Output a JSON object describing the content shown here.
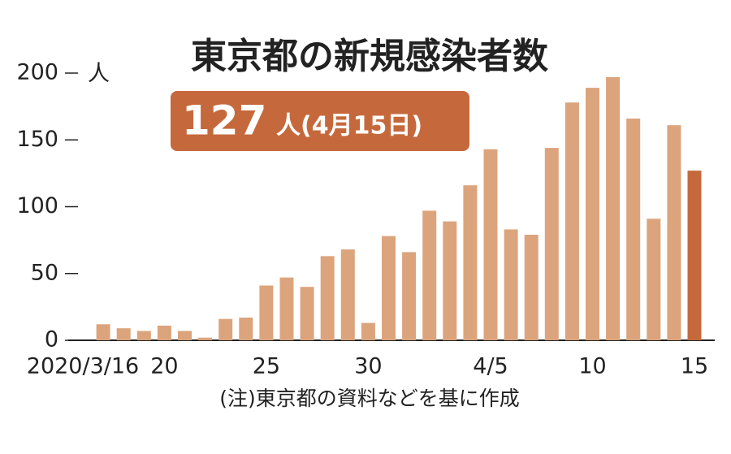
{
  "chart_data": {
    "type": "bar",
    "title": "東京都の新規感染者数",
    "annotation": {
      "number": "127",
      "text": "人(4月15日)"
    },
    "y_unit": "人",
    "note": "(注)東京都の資料などを基に作成",
    "categories": [
      "2020/3/16",
      null,
      null,
      null,
      "20",
      null,
      null,
      null,
      null,
      "25",
      null,
      null,
      null,
      null,
      "30",
      null,
      null,
      null,
      null,
      null,
      "4/5",
      null,
      null,
      null,
      null,
      "10",
      null,
      null,
      null,
      null,
      "15"
    ],
    "values": [
      0,
      12,
      9,
      7,
      11,
      7,
      2,
      16,
      17,
      41,
      47,
      40,
      63,
      68,
      13,
      78,
      66,
      97,
      89,
      116,
      143,
      83,
      79,
      144,
      178,
      189,
      197,
      166,
      91,
      161,
      127
    ],
    "colors": [
      "#dca47c",
      "#dca47c",
      "#dca47c",
      "#dca47c",
      "#dca47c",
      "#dca47c",
      "#dca47c",
      "#dca47c",
      "#dca47c",
      "#dca47c",
      "#dca47c",
      "#dca47c",
      "#dca47c",
      "#dca47c",
      "#dca47c",
      "#dca47c",
      "#dca47c",
      "#dca47c",
      "#dca47c",
      "#dca47c",
      "#dca47c",
      "#dca47c",
      "#dca47c",
      "#dca47c",
      "#dca47c",
      "#dca47c",
      "#dca47c",
      "#dca47c",
      "#dca47c",
      "#dca47c",
      "#c5693c"
    ],
    "ylim": [
      0,
      200
    ],
    "yticks": [
      0,
      50,
      100,
      150,
      200
    ],
    "badge_color": "#c5693c"
  }
}
